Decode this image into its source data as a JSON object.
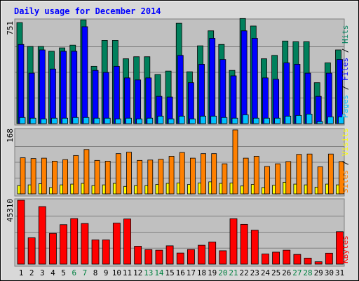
{
  "chart_data": [
    {
      "type": "bar",
      "panel": "hits_files_pages",
      "title": "Daily usage for December 2014",
      "max_label": "751",
      "right_label_parts": [
        "Pages",
        " / ",
        "Files",
        " / ",
        "Hits"
      ],
      "colors": {
        "hits": "#00805c",
        "files": "#0000ff",
        "pages": "#00c0ff",
        "panel_bg": "#c0c0c0",
        "frame_bg": "#d8d8d8",
        "title": "#0000ff",
        "weekend_label": "#008040",
        "weekday_label": "#000000"
      },
      "ylim": [
        0,
        751
      ],
      "categories": [
        "1",
        "2",
        "3",
        "4",
        "5",
        "6",
        "7",
        "8",
        "9",
        "10",
        "11",
        "12",
        "13",
        "14",
        "15",
        "16",
        "17",
        "18",
        "19",
        "20",
        "21",
        "22",
        "23",
        "24",
        "25",
        "26",
        "27",
        "28",
        "29",
        "30",
        "31"
      ],
      "weekend_days": [
        "6",
        "7",
        "13",
        "14",
        "20",
        "21",
        "27",
        "28"
      ],
      "series": [
        {
          "name": "Hits",
          "values": [
            740,
            565,
            565,
            530,
            555,
            575,
            760,
            420,
            610,
            610,
            475,
            490,
            490,
            360,
            385,
            735,
            380,
            570,
            680,
            580,
            390,
            770,
            715,
            475,
            500,
            605,
            600,
            600,
            300,
            445,
            540
          ]
        },
        {
          "name": "Files",
          "values": [
            580,
            370,
            540,
            400,
            530,
            530,
            710,
            390,
            375,
            420,
            335,
            320,
            335,
            200,
            195,
            500,
            300,
            435,
            625,
            470,
            350,
            680,
            625,
            335,
            325,
            445,
            435,
            370,
            200,
            370,
            470
          ]
        },
        {
          "name": "Pages",
          "values": [
            45,
            40,
            35,
            40,
            40,
            45,
            45,
            40,
            40,
            35,
            40,
            35,
            40,
            55,
            35,
            55,
            35,
            55,
            55,
            45,
            40,
            65,
            40,
            40,
            40,
            55,
            60,
            70,
            15,
            50,
            50
          ]
        }
      ]
    },
    {
      "type": "bar",
      "panel": "visits_sites",
      "max_label": "168",
      "right_label_parts": [
        "Sites",
        " / ",
        "Visits"
      ],
      "colors": {
        "visits": "#ff8000",
        "sites": "#ffff00"
      },
      "ylim": [
        0,
        168
      ],
      "series": [
        {
          "name": "Visits",
          "values": [
            96,
            94,
            95,
            87,
            91,
            102,
            118,
            89,
            87,
            107,
            111,
            89,
            90,
            92,
            100,
            110,
            95,
            107,
            107,
            80,
            170,
            95,
            100,
            73,
            80,
            86,
            105,
            106,
            72,
            106,
            86
          ]
        },
        {
          "name": "Sites",
          "values": [
            22,
            24,
            27,
            17,
            24,
            26,
            28,
            22,
            24,
            28,
            20,
            22,
            22,
            25,
            28,
            29,
            25,
            29,
            32,
            28,
            29,
            21,
            25,
            17,
            23,
            31,
            26,
            24,
            18,
            26,
            24
          ]
        }
      ]
    },
    {
      "type": "bar",
      "panel": "kbytes",
      "max_label": "45310",
      "right_label_parts": [
        "KBytes"
      ],
      "colors": {
        "kbytes": "#ff0000"
      },
      "ylim": [
        0,
        45310
      ],
      "series": [
        {
          "name": "KBytes",
          "values": [
            45310,
            18700,
            40800,
            21800,
            28000,
            32300,
            28800,
            17200,
            17200,
            29100,
            32000,
            12700,
            10300,
            9900,
            13000,
            7900,
            10400,
            13400,
            15700,
            9500,
            32200,
            28200,
            24100,
            7200,
            8500,
            9900,
            6900,
            4300,
            1700,
            7800,
            23000
          ]
        }
      ]
    }
  ]
}
